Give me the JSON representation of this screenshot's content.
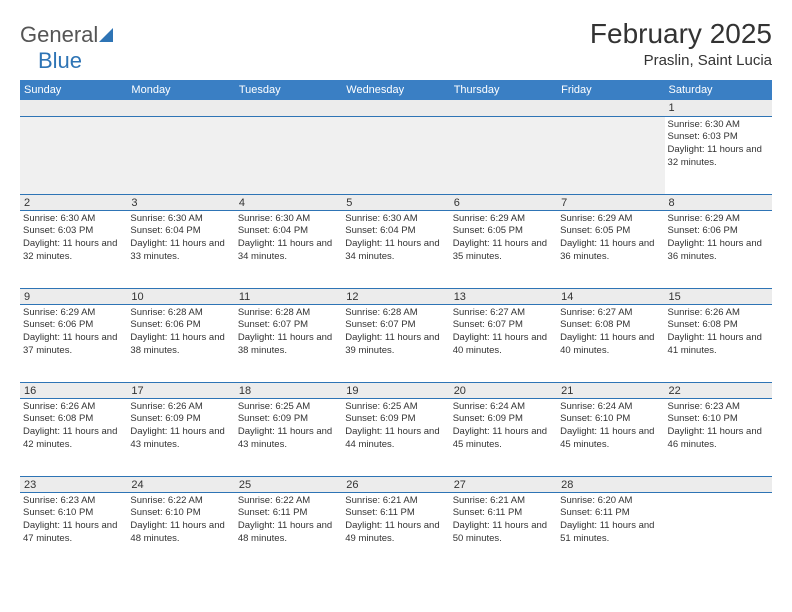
{
  "logo": {
    "part1": "General",
    "part2": "Blue"
  },
  "title": "February 2025",
  "location": "Praslin, Saint Lucia",
  "colors": {
    "header_bg": "#3a7fc4",
    "border": "#2e74b5",
    "numrow_bg": "#ececec",
    "text": "#333333",
    "logo_gray": "#555555",
    "logo_blue": "#2e74b5"
  },
  "day_headers": [
    "Sunday",
    "Monday",
    "Tuesday",
    "Wednesday",
    "Thursday",
    "Friday",
    "Saturday"
  ],
  "weeks": [
    [
      null,
      null,
      null,
      null,
      null,
      null,
      {
        "n": "1",
        "sunrise": "Sunrise: 6:30 AM",
        "sunset": "Sunset: 6:03 PM",
        "daylight": "Daylight: 11 hours and 32 minutes."
      }
    ],
    [
      {
        "n": "2",
        "sunrise": "Sunrise: 6:30 AM",
        "sunset": "Sunset: 6:03 PM",
        "daylight": "Daylight: 11 hours and 32 minutes."
      },
      {
        "n": "3",
        "sunrise": "Sunrise: 6:30 AM",
        "sunset": "Sunset: 6:04 PM",
        "daylight": "Daylight: 11 hours and 33 minutes."
      },
      {
        "n": "4",
        "sunrise": "Sunrise: 6:30 AM",
        "sunset": "Sunset: 6:04 PM",
        "daylight": "Daylight: 11 hours and 34 minutes."
      },
      {
        "n": "5",
        "sunrise": "Sunrise: 6:30 AM",
        "sunset": "Sunset: 6:04 PM",
        "daylight": "Daylight: 11 hours and 34 minutes."
      },
      {
        "n": "6",
        "sunrise": "Sunrise: 6:29 AM",
        "sunset": "Sunset: 6:05 PM",
        "daylight": "Daylight: 11 hours and 35 minutes."
      },
      {
        "n": "7",
        "sunrise": "Sunrise: 6:29 AM",
        "sunset": "Sunset: 6:05 PM",
        "daylight": "Daylight: 11 hours and 36 minutes."
      },
      {
        "n": "8",
        "sunrise": "Sunrise: 6:29 AM",
        "sunset": "Sunset: 6:06 PM",
        "daylight": "Daylight: 11 hours and 36 minutes."
      }
    ],
    [
      {
        "n": "9",
        "sunrise": "Sunrise: 6:29 AM",
        "sunset": "Sunset: 6:06 PM",
        "daylight": "Daylight: 11 hours and 37 minutes."
      },
      {
        "n": "10",
        "sunrise": "Sunrise: 6:28 AM",
        "sunset": "Sunset: 6:06 PM",
        "daylight": "Daylight: 11 hours and 38 minutes."
      },
      {
        "n": "11",
        "sunrise": "Sunrise: 6:28 AM",
        "sunset": "Sunset: 6:07 PM",
        "daylight": "Daylight: 11 hours and 38 minutes."
      },
      {
        "n": "12",
        "sunrise": "Sunrise: 6:28 AM",
        "sunset": "Sunset: 6:07 PM",
        "daylight": "Daylight: 11 hours and 39 minutes."
      },
      {
        "n": "13",
        "sunrise": "Sunrise: 6:27 AM",
        "sunset": "Sunset: 6:07 PM",
        "daylight": "Daylight: 11 hours and 40 minutes."
      },
      {
        "n": "14",
        "sunrise": "Sunrise: 6:27 AM",
        "sunset": "Sunset: 6:08 PM",
        "daylight": "Daylight: 11 hours and 40 minutes."
      },
      {
        "n": "15",
        "sunrise": "Sunrise: 6:26 AM",
        "sunset": "Sunset: 6:08 PM",
        "daylight": "Daylight: 11 hours and 41 minutes."
      }
    ],
    [
      {
        "n": "16",
        "sunrise": "Sunrise: 6:26 AM",
        "sunset": "Sunset: 6:08 PM",
        "daylight": "Daylight: 11 hours and 42 minutes."
      },
      {
        "n": "17",
        "sunrise": "Sunrise: 6:26 AM",
        "sunset": "Sunset: 6:09 PM",
        "daylight": "Daylight: 11 hours and 43 minutes."
      },
      {
        "n": "18",
        "sunrise": "Sunrise: 6:25 AM",
        "sunset": "Sunset: 6:09 PM",
        "daylight": "Daylight: 11 hours and 43 minutes."
      },
      {
        "n": "19",
        "sunrise": "Sunrise: 6:25 AM",
        "sunset": "Sunset: 6:09 PM",
        "daylight": "Daylight: 11 hours and 44 minutes."
      },
      {
        "n": "20",
        "sunrise": "Sunrise: 6:24 AM",
        "sunset": "Sunset: 6:09 PM",
        "daylight": "Daylight: 11 hours and 45 minutes."
      },
      {
        "n": "21",
        "sunrise": "Sunrise: 6:24 AM",
        "sunset": "Sunset: 6:10 PM",
        "daylight": "Daylight: 11 hours and 45 minutes."
      },
      {
        "n": "22",
        "sunrise": "Sunrise: 6:23 AM",
        "sunset": "Sunset: 6:10 PM",
        "daylight": "Daylight: 11 hours and 46 minutes."
      }
    ],
    [
      {
        "n": "23",
        "sunrise": "Sunrise: 6:23 AM",
        "sunset": "Sunset: 6:10 PM",
        "daylight": "Daylight: 11 hours and 47 minutes."
      },
      {
        "n": "24",
        "sunrise": "Sunrise: 6:22 AM",
        "sunset": "Sunset: 6:10 PM",
        "daylight": "Daylight: 11 hours and 48 minutes."
      },
      {
        "n": "25",
        "sunrise": "Sunrise: 6:22 AM",
        "sunset": "Sunset: 6:11 PM",
        "daylight": "Daylight: 11 hours and 48 minutes."
      },
      {
        "n": "26",
        "sunrise": "Sunrise: 6:21 AM",
        "sunset": "Sunset: 6:11 PM",
        "daylight": "Daylight: 11 hours and 49 minutes."
      },
      {
        "n": "27",
        "sunrise": "Sunrise: 6:21 AM",
        "sunset": "Sunset: 6:11 PM",
        "daylight": "Daylight: 11 hours and 50 minutes."
      },
      {
        "n": "28",
        "sunrise": "Sunrise: 6:20 AM",
        "sunset": "Sunset: 6:11 PM",
        "daylight": "Daylight: 11 hours and 51 minutes."
      },
      null
    ]
  ]
}
